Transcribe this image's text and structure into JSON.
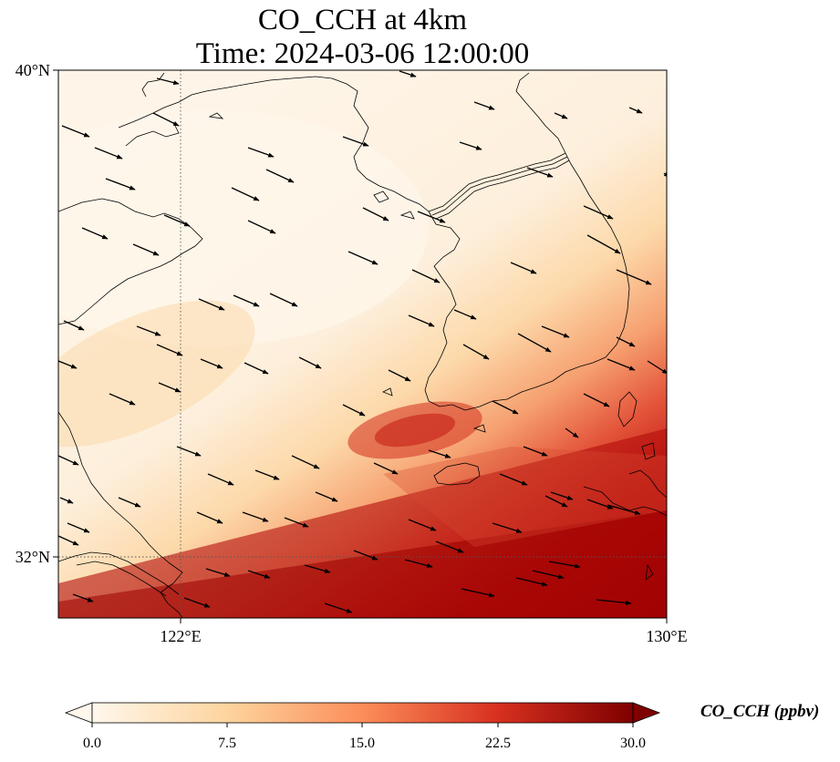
{
  "map": {
    "title_line1": "CO_CCH at 4km",
    "title_line2": "Time: 2024-03-06 12:00:00",
    "lat_labels": [
      "40°N",
      "32°N"
    ],
    "lon_labels": [
      "122°E",
      "130°E"
    ],
    "lon_range": [
      120,
      130
    ],
    "lat_range": [
      31,
      40
    ],
    "gridlines": {
      "lon": 122,
      "lat": 32,
      "style": "dotted"
    },
    "colormap": "OrRd",
    "colorbar": {
      "label": "CO_CCH (ppbv)",
      "ticks": [
        "0.0",
        "7.5",
        "15.0",
        "22.5",
        "30.0"
      ],
      "range": [
        0,
        30
      ],
      "extend": "both"
    },
    "vectors": "wind arrows toward east-southeast"
  }
}
